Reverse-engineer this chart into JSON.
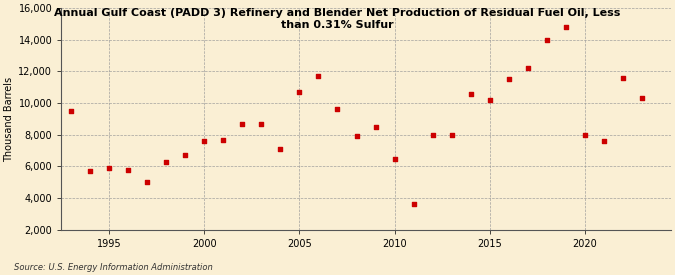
{
  "title": "Annual Gulf Coast (PADD 3) Refinery and Blender Net Production of Residual Fuel Oil, Less\nthan 0.31% Sulfur",
  "ylabel": "Thousand Barrels",
  "source": "Source: U.S. Energy Information Administration",
  "background_color": "#faefd4",
  "plot_bg_color": "#faefd4",
  "marker_color": "#cc0000",
  "years": [
    1993,
    1994,
    1995,
    1996,
    1997,
    1998,
    1999,
    2000,
    2001,
    2002,
    2003,
    2004,
    2005,
    2006,
    2007,
    2008,
    2009,
    2010,
    2011,
    2012,
    2013,
    2014,
    2015,
    2016,
    2017,
    2018,
    2019,
    2020,
    2021,
    2022,
    2023
  ],
  "values": [
    9500,
    5700,
    5900,
    5800,
    5000,
    6300,
    6700,
    7600,
    7700,
    8700,
    8700,
    7100,
    10700,
    11700,
    9600,
    7900,
    8500,
    6500,
    3600,
    8000,
    8000,
    10600,
    10200,
    11500,
    12200,
    14000,
    14800,
    8000,
    7600,
    11600,
    10300
  ],
  "ylim": [
    2000,
    16000
  ],
  "yticks": [
    2000,
    4000,
    6000,
    8000,
    10000,
    12000,
    14000,
    16000
  ],
  "xlim": [
    1992.5,
    2024.5
  ],
  "xticks": [
    1995,
    2000,
    2005,
    2010,
    2015,
    2020
  ]
}
